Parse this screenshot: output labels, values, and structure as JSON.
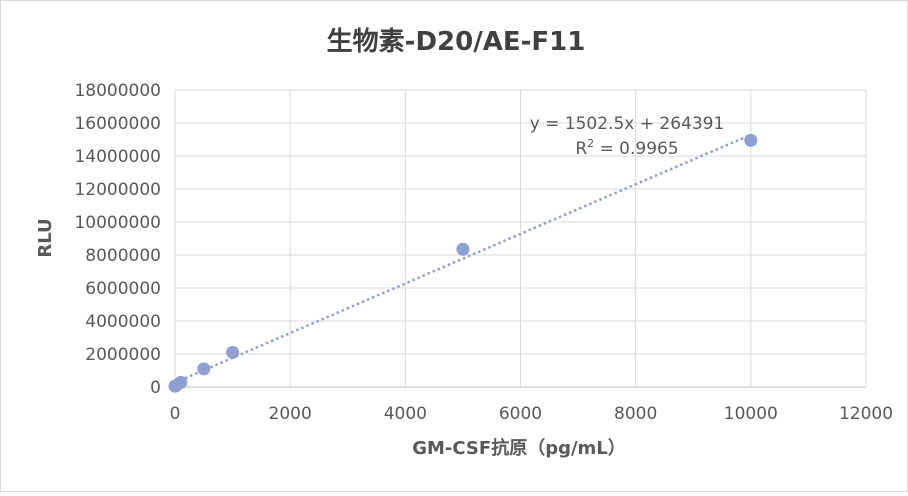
{
  "chart_data": {
    "type": "scatter",
    "title": "生物素-D20/AE-F11",
    "xlabel": "GM-CSF抗原（pg/mL）",
    "ylabel": "RLU",
    "xlim": [
      0,
      12000
    ],
    "ylim": [
      0,
      18000000
    ],
    "x_ticks": [
      "0",
      "2000",
      "4000",
      "6000",
      "8000",
      "10000",
      "12000"
    ],
    "y_ticks": [
      "0",
      "2000000",
      "4000000",
      "6000000",
      "8000000",
      "10000000",
      "12000000",
      "14000000",
      "16000000",
      "18000000"
    ],
    "grid": true,
    "series": [
      {
        "points": [
          {
            "x": 0,
            "y": 50000
          },
          {
            "x": 20,
            "y": 90000
          },
          {
            "x": 100,
            "y": 280000
          },
          {
            "x": 500,
            "y": 1100000
          },
          {
            "x": 1000,
            "y": 2100000
          },
          {
            "x": 5000,
            "y": 8350000
          },
          {
            "x": 10000,
            "y": 14950000
          }
        ],
        "color": "#8e9fd3"
      }
    ],
    "trendline": {
      "type": "linear",
      "slope": 1502.5,
      "intercept": 264391,
      "style": "dotted",
      "color": "#8e9fd3",
      "equation_label": "y = 1502.5x + 264391",
      "r2_prefix": "R",
      "r2_sup": "2",
      "r2_value": " = 0.9965"
    }
  }
}
